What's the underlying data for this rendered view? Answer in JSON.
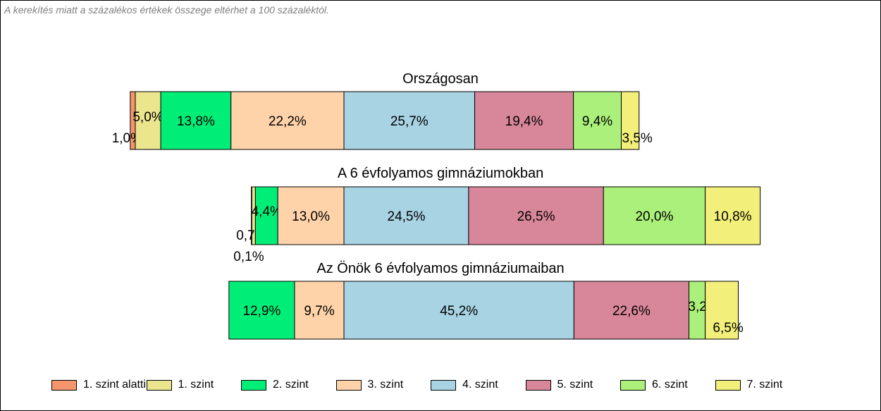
{
  "note": "A kerekítés miatt a  százalékos értékek összege eltérhet a 100 százaléktól.",
  "chart_data": {
    "type": "bar",
    "orientation": "horizontal-stacked",
    "levels": [
      {
        "name": "1. szint alatti",
        "color": "#f4956b"
      },
      {
        "name": "1. szint",
        "color": "#ebe58e"
      },
      {
        "name": "2. szint",
        "color": "#00ee77"
      },
      {
        "name": "3. szint",
        "color": "#ffd3aa"
      },
      {
        "name": "4. szint",
        "color": "#a8d3e3"
      },
      {
        "name": "5. szint",
        "color": "#d8879a"
      },
      {
        "name": "6. szint",
        "color": "#aaf07a"
      },
      {
        "name": "7. szint",
        "color": "#f2f07a"
      }
    ],
    "groups": [
      {
        "title": "Országosan",
        "values": [
          1.0,
          5.0,
          13.8,
          22.2,
          25.7,
          19.4,
          9.4,
          3.5
        ],
        "labels": [
          "1,0%",
          "5,0%",
          "13,8%",
          "22,2%",
          "25,7%",
          "19,4%",
          "9,4%",
          "3,5%"
        ]
      },
      {
        "title": "A 6 évfolyamos gimnáziumokban",
        "values": [
          0.1,
          0.7,
          4.4,
          13.0,
          24.5,
          26.5,
          20.0,
          10.8
        ],
        "labels": [
          "0,1%",
          "0,7%",
          "4,4%",
          "13,0%",
          "24,5%",
          "26,5%",
          "20,0%",
          "10,8%"
        ]
      },
      {
        "title": "Az Önök 6 évfolyamos gimnáziumaiban",
        "values": [
          0,
          0,
          12.9,
          9.7,
          45.2,
          22.6,
          3.2,
          6.5
        ],
        "labels": [
          "",
          "",
          "12,9%",
          "9,7%",
          "45,2%",
          "22,6%",
          "3,2%",
          "6,5%"
        ]
      }
    ],
    "legend_position": "bottom",
    "grid": false
  }
}
